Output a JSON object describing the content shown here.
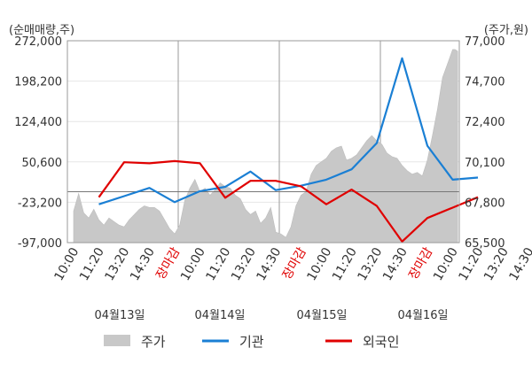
{
  "chart_data": {
    "type": "line",
    "left_axis": {
      "unit_label": "(순매매량,주)",
      "ticks": [
        272000,
        198200,
        124400,
        50600,
        -23200,
        -97000
      ],
      "tick_labels": [
        "272,000",
        "198,200",
        "124,400",
        "50,600",
        "-23,200",
        "-97,000"
      ],
      "ylim": [
        -97000,
        272000
      ]
    },
    "right_axis": {
      "unit_label": "(주가,원)",
      "ticks": [
        77000,
        74700,
        72400,
        70100,
        67800,
        65500
      ],
      "tick_labels": [
        "77,000",
        "74,700",
        "72,400",
        "70,100",
        "67,800",
        "65,500"
      ],
      "ylim": [
        65500,
        77000
      ]
    },
    "x_tick_labels": [
      "10:00",
      "11:20",
      "13:20",
      "14:30",
      "장마감",
      "10:00",
      "11:20",
      "13:20",
      "14:30",
      "장마감",
      "10:00",
      "11:20",
      "13:20",
      "14:30",
      "장마감",
      "10:00",
      "11:20",
      "13:20",
      "14:30"
    ],
    "close_label": "장마감",
    "days": [
      "04월13일",
      "04월14일",
      "04월15일",
      "04월16일"
    ],
    "grid": true,
    "legend_position": "bottom",
    "series": [
      {
        "name": "주가",
        "axis": "right",
        "kind": "area",
        "color": "#c8c8c8",
        "x": [
          0,
          0.2,
          0.4,
          0.6,
          0.8,
          1.0,
          1.2,
          1.4,
          1.6,
          1.8,
          2.0,
          2.2,
          2.4,
          2.6,
          2.8,
          3.0,
          3.2,
          3.4,
          3.6,
          3.8,
          4.0,
          4.2,
          4.4,
          4.6,
          4.8,
          5.0,
          5.2,
          5.4,
          5.6,
          5.8,
          6.0,
          6.2,
          6.4,
          6.6,
          6.8,
          7.0,
          7.2,
          7.4,
          7.6,
          7.8,
          8.0,
          8.2,
          8.4,
          8.6,
          8.8,
          9.0,
          9.2,
          9.4,
          9.6,
          9.8,
          10.0,
          10.2,
          10.4,
          10.6,
          10.8,
          11.0,
          11.2,
          11.4,
          11.6,
          11.8,
          12.0,
          12.2,
          12.4,
          12.6,
          12.8,
          13.0,
          13.2,
          13.4,
          13.6,
          13.8,
          14.0,
          14.2,
          14.4,
          14.6,
          14.8,
          15.0,
          15.1,
          15.2
        ],
        "values": [
          67300,
          68300,
          67200,
          66900,
          67400,
          66800,
          66500,
          66900,
          66700,
          66500,
          66400,
          66800,
          67100,
          67400,
          67600,
          67500,
          67500,
          67300,
          66800,
          66300,
          66000,
          66500,
          67900,
          68600,
          69100,
          68400,
          68600,
          68200,
          68500,
          68900,
          68700,
          68600,
          68200,
          68000,
          67400,
          67100,
          67300,
          66600,
          66900,
          67500,
          66100,
          66000,
          65800,
          66400,
          67600,
          68200,
          68400,
          69400,
          69900,
          70100,
          70300,
          70700,
          70900,
          71000,
          70200,
          70300,
          70500,
          70900,
          71300,
          71600,
          71300,
          71100,
          70600,
          70400,
          70300,
          69900,
          69600,
          69400,
          69500,
          69300,
          70200,
          71600,
          73100,
          74900,
          75700,
          76500,
          76500,
          76400
        ]
      },
      {
        "name": "기관",
        "axis": "left",
        "kind": "line",
        "color": "#1a7fd4",
        "x": [
          1,
          2,
          3,
          4,
          5,
          6,
          7,
          8,
          9,
          10,
          11,
          12,
          13,
          14,
          15,
          16
        ],
        "values": [
          -27000,
          -12000,
          3000,
          -23000,
          -3000,
          5000,
          33000,
          -1000,
          7000,
          18000,
          37000,
          85000,
          240000,
          80000,
          18000,
          22000
        ]
      },
      {
        "name": "외국인",
        "axis": "left",
        "kind": "line",
        "color": "#e00000",
        "x": [
          1,
          2,
          3,
          4,
          5,
          6,
          7,
          8,
          9,
          10,
          11,
          12,
          13,
          14,
          15,
          16
        ],
        "values": [
          -14000,
          50000,
          48000,
          52000,
          48000,
          -15000,
          16000,
          16000,
          6000,
          -27000,
          0,
          -30000,
          -95000,
          -52000,
          -33000,
          -14000
        ]
      }
    ]
  }
}
